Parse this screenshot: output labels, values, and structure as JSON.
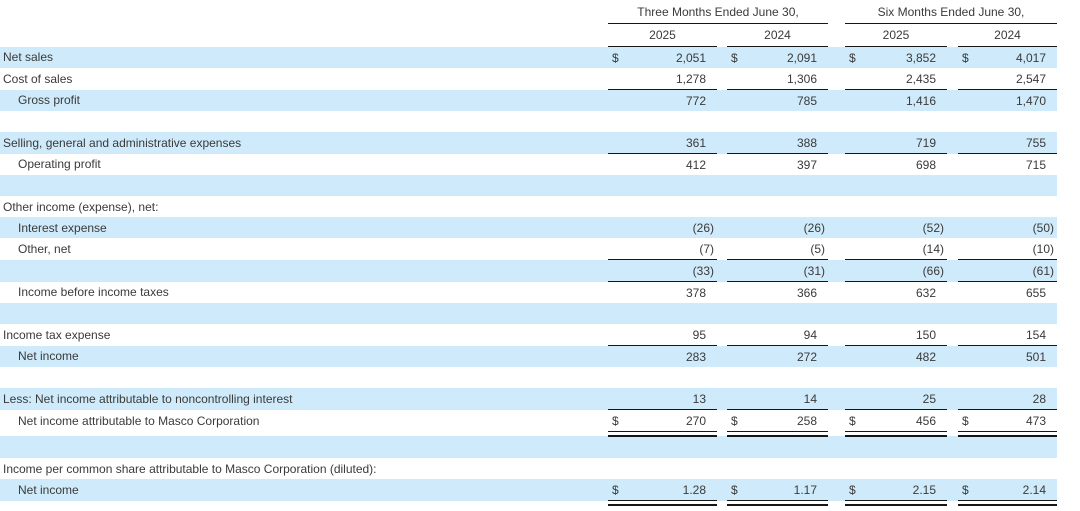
{
  "currency_symbol": "$",
  "colors": {
    "row_highlight": "#cfeafa",
    "rule": "#161616",
    "text": "#3a3a3a"
  },
  "header": {
    "groups": [
      {
        "title": "Three Months Ended June 30,",
        "years": [
          "2025",
          "2024"
        ]
      },
      {
        "title": "Six Months Ended June 30,",
        "years": [
          "2025",
          "2024"
        ]
      }
    ]
  },
  "rows": [
    {
      "label": "Net sales",
      "indent": false,
      "bg": "blue",
      "dollar": true,
      "top_line": false,
      "double_bottom": false,
      "values": [
        "2,051",
        "2,091",
        "3,852",
        "4,017"
      ]
    },
    {
      "label": "Cost of sales",
      "indent": false,
      "bg": "white",
      "dollar": false,
      "top_line": false,
      "double_bottom": false,
      "values": [
        "1,278",
        "1,306",
        "2,435",
        "2,547"
      ]
    },
    {
      "label": "Gross profit",
      "indent": true,
      "bg": "blue",
      "dollar": false,
      "top_line": true,
      "double_bottom": false,
      "values": [
        "772",
        "785",
        "1,416",
        "1,470"
      ]
    },
    {
      "label": "",
      "indent": false,
      "bg": "white",
      "dollar": false,
      "top_line": false,
      "double_bottom": false,
      "values": null
    },
    {
      "label": "Selling, general and administrative expenses",
      "indent": false,
      "bg": "blue",
      "dollar": false,
      "top_line": false,
      "double_bottom": false,
      "values": [
        "361",
        "388",
        "719",
        "755"
      ]
    },
    {
      "label": "Operating profit",
      "indent": true,
      "bg": "white",
      "dollar": false,
      "top_line": true,
      "double_bottom": false,
      "values": [
        "412",
        "397",
        "698",
        "715"
      ]
    },
    {
      "label": "",
      "indent": false,
      "bg": "blue",
      "dollar": false,
      "top_line": false,
      "double_bottom": false,
      "values": null
    },
    {
      "label": "Other income (expense), net:",
      "indent": false,
      "bg": "white",
      "dollar": false,
      "top_line": false,
      "double_bottom": false,
      "values": null
    },
    {
      "label": "Interest expense",
      "indent": true,
      "bg": "blue",
      "dollar": false,
      "top_line": false,
      "double_bottom": false,
      "values": [
        "(26)",
        "(26)",
        "(52)",
        "(50)"
      ]
    },
    {
      "label": "Other, net",
      "indent": true,
      "bg": "white",
      "dollar": false,
      "top_line": false,
      "double_bottom": false,
      "values": [
        "(7)",
        "(5)",
        "(14)",
        "(10)"
      ]
    },
    {
      "label": "",
      "indent": false,
      "bg": "blue",
      "dollar": false,
      "top_line": true,
      "double_bottom": false,
      "values": [
        "(33)",
        "(31)",
        "(66)",
        "(61)"
      ]
    },
    {
      "label": "Income before income taxes",
      "indent": true,
      "bg": "white",
      "dollar": false,
      "top_line": true,
      "double_bottom": false,
      "values": [
        "378",
        "366",
        "632",
        "655"
      ]
    },
    {
      "label": "",
      "indent": false,
      "bg": "blue",
      "dollar": false,
      "top_line": false,
      "double_bottom": false,
      "values": null
    },
    {
      "label": "Income tax expense",
      "indent": false,
      "bg": "white",
      "dollar": false,
      "top_line": false,
      "double_bottom": false,
      "values": [
        "95",
        "94",
        "150",
        "154"
      ]
    },
    {
      "label": "Net income",
      "indent": true,
      "bg": "blue",
      "dollar": false,
      "top_line": true,
      "double_bottom": false,
      "values": [
        "283",
        "272",
        "482",
        "501"
      ]
    },
    {
      "label": "",
      "indent": false,
      "bg": "white",
      "dollar": false,
      "top_line": false,
      "double_bottom": false,
      "values": null
    },
    {
      "label": "Less: Net income attributable to noncontrolling interest",
      "indent": false,
      "bg": "blue",
      "dollar": false,
      "top_line": false,
      "double_bottom": false,
      "values": [
        "13",
        "14",
        "25",
        "28"
      ]
    },
    {
      "label": "Net income attributable to Masco Corporation",
      "indent": true,
      "bg": "white",
      "dollar": true,
      "top_line": true,
      "double_bottom": true,
      "values": [
        "270",
        "258",
        "456",
        "473"
      ]
    },
    {
      "label": "",
      "indent": false,
      "bg": "blue",
      "dollar": false,
      "top_line": false,
      "double_bottom": false,
      "values": null
    },
    {
      "label": "Income per common share attributable to Masco Corporation (diluted):",
      "indent": false,
      "bg": "white",
      "dollar": false,
      "top_line": false,
      "double_bottom": false,
      "values": null
    },
    {
      "label": "Net income",
      "indent": true,
      "bg": "blue",
      "dollar": true,
      "top_line": false,
      "double_bottom": true,
      "values": [
        "1.28",
        "1.17",
        "2.15",
        "2.14"
      ]
    }
  ]
}
